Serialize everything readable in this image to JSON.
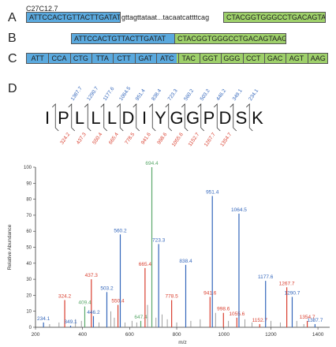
{
  "figure": {
    "gene_label": "C27C12.7",
    "panels": [
      "A",
      "B",
      "C",
      "D"
    ],
    "panel_a": {
      "exon1": "ATTCCACTGTTACTTGATAT",
      "intron": "gttagttataat...tacaatcattttcag",
      "exon2": "CTACGGTGGGCCTGACAGTAAG"
    },
    "panel_b": {
      "exon1": "ATTCCACTGTTACTTGATAT",
      "exon2": "CTACGGTGGGCCTGACAGTAAG"
    },
    "panel_c": {
      "codons": [
        "ATT",
        "CCA",
        "CTG",
        "TTA",
        "CTT",
        "GAT",
        "ATC",
        "TAC",
        "GGT",
        "GGG",
        "CCT",
        "GAC",
        "AGT",
        "AAG"
      ]
    },
    "panel_d": {
      "peptide": [
        "I",
        "P",
        "L",
        "L",
        "L",
        "D",
        "I",
        "Y",
        "G",
        "G",
        "P",
        "D",
        "S",
        "K"
      ],
      "y_ions": [
        "1387.7",
        "1290.7",
        "1177.6",
        "1064.5",
        "951.4",
        "838.4",
        "723.3",
        "560.2",
        "503.2",
        "446.2",
        "349.1",
        "234.1"
      ],
      "b_ions": [
        "324.2",
        "437.3",
        "550.4",
        "665.4",
        "778.5",
        "941.6",
        "998.6",
        "1055.6",
        "1152.7",
        "1267.7",
        "1354.7"
      ]
    }
  },
  "chart_data": {
    "type": "bar",
    "ylabel": "Relative Abundance",
    "xlabel": "m/z",
    "xlim": [
      200,
      1450
    ],
    "ylim": [
      0,
      100
    ],
    "xticks": [
      "200",
      "400",
      "600",
      "800",
      "1000",
      "1200",
      "1400"
    ],
    "yticks": [
      "0",
      "10",
      "20",
      "30",
      "40",
      "50",
      "60",
      "70",
      "80",
      "90",
      "100"
    ],
    "colors": {
      "b": "#d94030",
      "y": "#3366bb",
      "other": "#5aa86a",
      "noise": "#888888"
    },
    "peaks": [
      {
        "mz": 234.1,
        "intensity": 3,
        "label": "234.1",
        "ion": "y"
      },
      {
        "mz": 324.2,
        "intensity": 17,
        "label": "324.2",
        "ion": "b"
      },
      {
        "mz": 349.1,
        "intensity": 1,
        "label": "349.1",
        "ion": "y"
      },
      {
        "mz": 409.4,
        "intensity": 13,
        "label": "409.4",
        "ion": "other"
      },
      {
        "mz": 437.3,
        "intensity": 30,
        "label": "437.3",
        "ion": "b"
      },
      {
        "mz": 446.2,
        "intensity": 7,
        "label": "446.2",
        "ion": "y"
      },
      {
        "mz": 503.2,
        "intensity": 22,
        "label": "503.2",
        "ion": "y"
      },
      {
        "mz": 550.4,
        "intensity": 14,
        "label": "550.4",
        "ion": "b"
      },
      {
        "mz": 560.2,
        "intensity": 58,
        "label": "560.2",
        "ion": "y"
      },
      {
        "mz": 647.4,
        "intensity": 4,
        "label": "647.4",
        "ion": "other"
      },
      {
        "mz": 665.4,
        "intensity": 37,
        "label": "665.4",
        "ion": "b"
      },
      {
        "mz": 694.4,
        "intensity": 100,
        "label": "694.4",
        "ion": "other"
      },
      {
        "mz": 723.3,
        "intensity": 52,
        "label": "723.3",
        "ion": "y"
      },
      {
        "mz": 778.5,
        "intensity": 17,
        "label": "778.5",
        "ion": "b"
      },
      {
        "mz": 838.4,
        "intensity": 39,
        "label": "838.4",
        "ion": "y"
      },
      {
        "mz": 941.6,
        "intensity": 19,
        "label": "941.6",
        "ion": "b"
      },
      {
        "mz": 951.4,
        "intensity": 82,
        "label": "951.4",
        "ion": "y"
      },
      {
        "mz": 998.6,
        "intensity": 9,
        "label": "998.6",
        "ion": "b"
      },
      {
        "mz": 1055.6,
        "intensity": 6,
        "label": "1055.6",
        "ion": "b"
      },
      {
        "mz": 1064.5,
        "intensity": 71,
        "label": "1064.5",
        "ion": "y"
      },
      {
        "mz": 1152.7,
        "intensity": 2,
        "label": "1152.7",
        "ion": "b"
      },
      {
        "mz": 1177.6,
        "intensity": 29,
        "label": "1177.6",
        "ion": "y"
      },
      {
        "mz": 1267.7,
        "intensity": 25,
        "label": "1267.7",
        "ion": "b"
      },
      {
        "mz": 1290.7,
        "intensity": 19,
        "label": "1290.7",
        "ion": "y"
      },
      {
        "mz": 1354.7,
        "intensity": 4,
        "label": "1354.7",
        "ion": "b"
      },
      {
        "mz": 1387.7,
        "intensity": 2,
        "label": "1387.7",
        "ion": "y"
      }
    ],
    "noise": [
      {
        "mz": 260,
        "intensity": 2
      },
      {
        "mz": 300,
        "intensity": 3
      },
      {
        "mz": 370,
        "intensity": 5
      },
      {
        "mz": 395,
        "intensity": 4
      },
      {
        "mz": 470,
        "intensity": 3
      },
      {
        "mz": 520,
        "intensity": 10
      },
      {
        "mz": 535,
        "intensity": 6
      },
      {
        "mz": 580,
        "intensity": 3
      },
      {
        "mz": 610,
        "intensity": 4
      },
      {
        "mz": 630,
        "intensity": 3
      },
      {
        "mz": 676,
        "intensity": 14
      },
      {
        "mz": 712,
        "intensity": 6
      },
      {
        "mz": 738,
        "intensity": 8
      },
      {
        "mz": 760,
        "intensity": 5
      },
      {
        "mz": 800,
        "intensity": 3
      },
      {
        "mz": 860,
        "intensity": 4
      },
      {
        "mz": 900,
        "intensity": 5
      },
      {
        "mz": 965,
        "intensity": 9
      },
      {
        "mz": 1020,
        "intensity": 4
      },
      {
        "mz": 1090,
        "intensity": 5
      },
      {
        "mz": 1120,
        "intensity": 3
      },
      {
        "mz": 1200,
        "intensity": 4
      },
      {
        "mz": 1240,
        "intensity": 3
      },
      {
        "mz": 1310,
        "intensity": 4
      },
      {
        "mz": 1340,
        "intensity": 2
      }
    ]
  }
}
